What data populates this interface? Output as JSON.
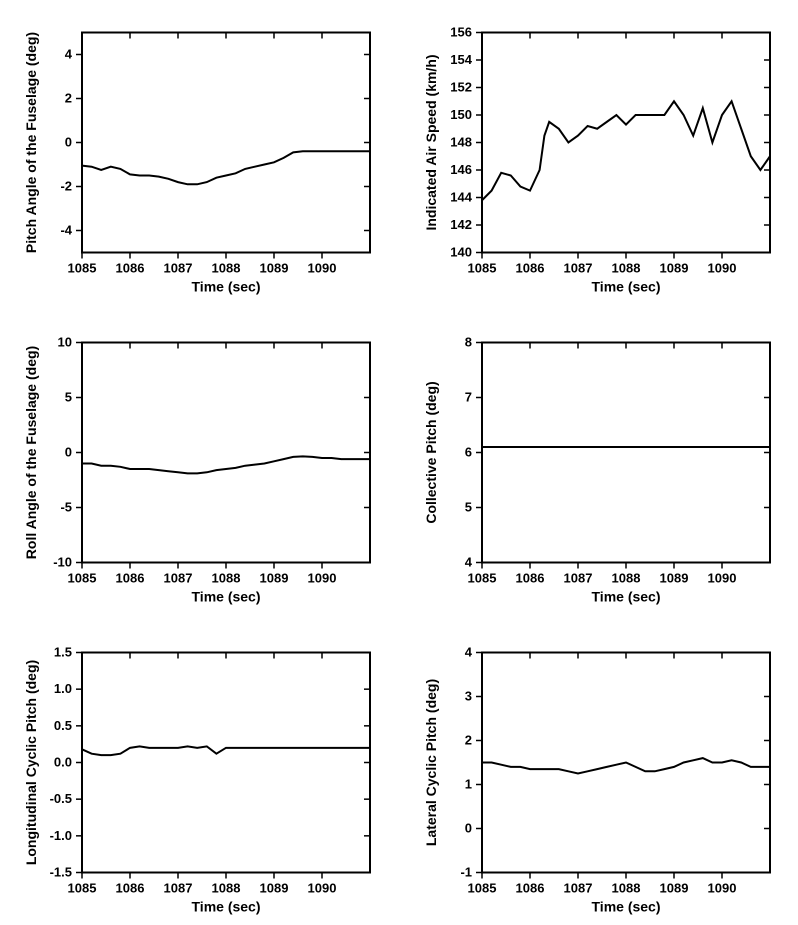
{
  "charts": [
    {
      "id": "pitch-angle",
      "xlabel": "Time (sec)",
      "ylabel": "Pitch Angle of the Fuselage (deg)",
      "xlim": [
        1085,
        1091
      ],
      "ylim": [
        -5,
        5
      ],
      "xticks": [
        1085,
        1086,
        1087,
        1088,
        1089,
        1090
      ],
      "yticks": [
        -4,
        -2,
        0,
        2,
        4
      ],
      "data": [
        [
          1085.0,
          -1.05
        ],
        [
          1085.2,
          -1.1
        ],
        [
          1085.4,
          -1.25
        ],
        [
          1085.6,
          -1.1
        ],
        [
          1085.8,
          -1.2
        ],
        [
          1086.0,
          -1.45
        ],
        [
          1086.2,
          -1.5
        ],
        [
          1086.4,
          -1.5
        ],
        [
          1086.6,
          -1.55
        ],
        [
          1086.8,
          -1.65
        ],
        [
          1087.0,
          -1.8
        ],
        [
          1087.2,
          -1.9
        ],
        [
          1087.4,
          -1.9
        ],
        [
          1087.6,
          -1.8
        ],
        [
          1087.8,
          -1.6
        ],
        [
          1088.0,
          -1.5
        ],
        [
          1088.2,
          -1.4
        ],
        [
          1088.4,
          -1.2
        ],
        [
          1088.6,
          -1.1
        ],
        [
          1088.8,
          -1.0
        ],
        [
          1089.0,
          -0.9
        ],
        [
          1089.2,
          -0.7
        ],
        [
          1089.4,
          -0.45
        ],
        [
          1089.6,
          -0.4
        ],
        [
          1089.8,
          -0.4
        ],
        [
          1090.0,
          -0.4
        ],
        [
          1090.2,
          -0.4
        ],
        [
          1090.4,
          -0.4
        ],
        [
          1090.6,
          -0.4
        ],
        [
          1090.8,
          -0.4
        ],
        [
          1091.0,
          -0.4
        ]
      ],
      "line_color": "#000000",
      "line_width": 2,
      "background_color": "#ffffff"
    },
    {
      "id": "airspeed",
      "xlabel": "Time (sec)",
      "ylabel": "Indicated Air Speed (km/h)",
      "xlim": [
        1085,
        1091
      ],
      "ylim": [
        140,
        156
      ],
      "xticks": [
        1085,
        1086,
        1087,
        1088,
        1089,
        1090
      ],
      "yticks": [
        140,
        142,
        144,
        146,
        148,
        150,
        152,
        154,
        156
      ],
      "data": [
        [
          1085.0,
          143.8
        ],
        [
          1085.2,
          144.5
        ],
        [
          1085.4,
          145.8
        ],
        [
          1085.6,
          145.6
        ],
        [
          1085.8,
          144.8
        ],
        [
          1086.0,
          144.5
        ],
        [
          1086.2,
          146.0
        ],
        [
          1086.3,
          148.5
        ],
        [
          1086.4,
          149.5
        ],
        [
          1086.6,
          149.0
        ],
        [
          1086.8,
          148.0
        ],
        [
          1087.0,
          148.5
        ],
        [
          1087.2,
          149.2
        ],
        [
          1087.4,
          149.0
        ],
        [
          1087.6,
          149.5
        ],
        [
          1087.8,
          150.0
        ],
        [
          1088.0,
          149.3
        ],
        [
          1088.2,
          150.0
        ],
        [
          1088.4,
          150.0
        ],
        [
          1088.6,
          150.0
        ],
        [
          1088.8,
          150.0
        ],
        [
          1089.0,
          151.0
        ],
        [
          1089.2,
          150.0
        ],
        [
          1089.4,
          148.5
        ],
        [
          1089.6,
          150.5
        ],
        [
          1089.8,
          148.0
        ],
        [
          1090.0,
          150.0
        ],
        [
          1090.2,
          151.0
        ],
        [
          1090.4,
          149.0
        ],
        [
          1090.6,
          147.0
        ],
        [
          1090.8,
          146.0
        ],
        [
          1091.0,
          147.0
        ]
      ],
      "line_color": "#000000",
      "line_width": 2,
      "background_color": "#ffffff"
    },
    {
      "id": "roll-angle",
      "xlabel": "Time (sec)",
      "ylabel": "Roll Angle of the Fuselage (deg)",
      "xlim": [
        1085,
        1091
      ],
      "ylim": [
        -10,
        10
      ],
      "xticks": [
        1085,
        1086,
        1087,
        1088,
        1089,
        1090
      ],
      "yticks": [
        -10,
        -5,
        0,
        5,
        10
      ],
      "data": [
        [
          1085.0,
          -1.0
        ],
        [
          1085.2,
          -1.0
        ],
        [
          1085.4,
          -1.2
        ],
        [
          1085.6,
          -1.2
        ],
        [
          1085.8,
          -1.3
        ],
        [
          1086.0,
          -1.5
        ],
        [
          1086.2,
          -1.5
        ],
        [
          1086.4,
          -1.5
        ],
        [
          1086.6,
          -1.6
        ],
        [
          1086.8,
          -1.7
        ],
        [
          1087.0,
          -1.8
        ],
        [
          1087.2,
          -1.9
        ],
        [
          1087.4,
          -1.9
        ],
        [
          1087.6,
          -1.8
        ],
        [
          1087.8,
          -1.6
        ],
        [
          1088.0,
          -1.5
        ],
        [
          1088.2,
          -1.4
        ],
        [
          1088.4,
          -1.2
        ],
        [
          1088.6,
          -1.1
        ],
        [
          1088.8,
          -1.0
        ],
        [
          1089.0,
          -0.8
        ],
        [
          1089.2,
          -0.6
        ],
        [
          1089.4,
          -0.4
        ],
        [
          1089.6,
          -0.35
        ],
        [
          1089.8,
          -0.4
        ],
        [
          1090.0,
          -0.5
        ],
        [
          1090.2,
          -0.5
        ],
        [
          1090.4,
          -0.6
        ],
        [
          1090.6,
          -0.6
        ],
        [
          1090.8,
          -0.6
        ],
        [
          1091.0,
          -0.6
        ]
      ],
      "line_color": "#000000",
      "line_width": 2,
      "background_color": "#ffffff"
    },
    {
      "id": "collective-pitch",
      "xlabel": "Time (sec)",
      "ylabel": "Collective Pitch (deg)",
      "xlim": [
        1085,
        1091
      ],
      "ylim": [
        4,
        8
      ],
      "xticks": [
        1085,
        1086,
        1087,
        1088,
        1089,
        1090
      ],
      "yticks": [
        4,
        5,
        6,
        7,
        8
      ],
      "data": [
        [
          1085.0,
          6.1
        ],
        [
          1091.0,
          6.1
        ]
      ],
      "line_color": "#000000",
      "line_width": 2,
      "background_color": "#ffffff"
    },
    {
      "id": "longitudinal-cyclic",
      "xlabel": "Time (sec)",
      "ylabel": "Longitudinal Cyclic Pitch (deg)",
      "xlim": [
        1085,
        1091
      ],
      "ylim": [
        -1.5,
        1.5
      ],
      "xticks": [
        1085,
        1086,
        1087,
        1088,
        1089,
        1090
      ],
      "yticks": [
        -1.5,
        -1.0,
        -0.5,
        0.0,
        0.5,
        1.0,
        1.5
      ],
      "data": [
        [
          1085.0,
          0.18
        ],
        [
          1085.2,
          0.12
        ],
        [
          1085.4,
          0.1
        ],
        [
          1085.6,
          0.1
        ],
        [
          1085.8,
          0.12
        ],
        [
          1086.0,
          0.2
        ],
        [
          1086.2,
          0.22
        ],
        [
          1086.4,
          0.2
        ],
        [
          1086.6,
          0.2
        ],
        [
          1086.8,
          0.2
        ],
        [
          1087.0,
          0.2
        ],
        [
          1087.2,
          0.22
        ],
        [
          1087.4,
          0.2
        ],
        [
          1087.6,
          0.22
        ],
        [
          1087.8,
          0.12
        ],
        [
          1088.0,
          0.2
        ],
        [
          1088.2,
          0.2
        ],
        [
          1088.4,
          0.2
        ],
        [
          1088.6,
          0.2
        ],
        [
          1088.8,
          0.2
        ],
        [
          1089.0,
          0.2
        ],
        [
          1089.2,
          0.2
        ],
        [
          1089.4,
          0.2
        ],
        [
          1089.6,
          0.2
        ],
        [
          1089.8,
          0.2
        ],
        [
          1090.0,
          0.2
        ],
        [
          1090.2,
          0.2
        ],
        [
          1090.4,
          0.2
        ],
        [
          1090.6,
          0.2
        ],
        [
          1090.8,
          0.2
        ],
        [
          1091.0,
          0.2
        ]
      ],
      "line_color": "#000000",
      "line_width": 2,
      "background_color": "#ffffff"
    },
    {
      "id": "lateral-cyclic",
      "xlabel": "Time (sec)",
      "ylabel": "Lateral Cyclic Pitch (deg)",
      "xlim": [
        1085,
        1091
      ],
      "ylim": [
        -1,
        4
      ],
      "xticks": [
        1085,
        1086,
        1087,
        1088,
        1089,
        1090
      ],
      "yticks": [
        -1,
        0,
        1,
        2,
        3,
        4
      ],
      "data": [
        [
          1085.0,
          1.5
        ],
        [
          1085.2,
          1.5
        ],
        [
          1085.4,
          1.45
        ],
        [
          1085.6,
          1.4
        ],
        [
          1085.8,
          1.4
        ],
        [
          1086.0,
          1.35
        ],
        [
          1086.2,
          1.35
        ],
        [
          1086.4,
          1.35
        ],
        [
          1086.6,
          1.35
        ],
        [
          1086.8,
          1.3
        ],
        [
          1087.0,
          1.25
        ],
        [
          1087.2,
          1.3
        ],
        [
          1087.4,
          1.35
        ],
        [
          1087.6,
          1.4
        ],
        [
          1087.8,
          1.45
        ],
        [
          1088.0,
          1.5
        ],
        [
          1088.2,
          1.4
        ],
        [
          1088.4,
          1.3
        ],
        [
          1088.6,
          1.3
        ],
        [
          1088.8,
          1.35
        ],
        [
          1089.0,
          1.4
        ],
        [
          1089.2,
          1.5
        ],
        [
          1089.4,
          1.55
        ],
        [
          1089.6,
          1.6
        ],
        [
          1089.8,
          1.5
        ],
        [
          1090.0,
          1.5
        ],
        [
          1090.2,
          1.55
        ],
        [
          1090.4,
          1.5
        ],
        [
          1090.6,
          1.4
        ],
        [
          1090.8,
          1.4
        ],
        [
          1091.0,
          1.4
        ]
      ],
      "line_color": "#000000",
      "line_width": 2,
      "background_color": "#ffffff"
    }
  ],
  "label_fontsize": 14,
  "tick_fontsize": 13,
  "font_weight": "bold"
}
